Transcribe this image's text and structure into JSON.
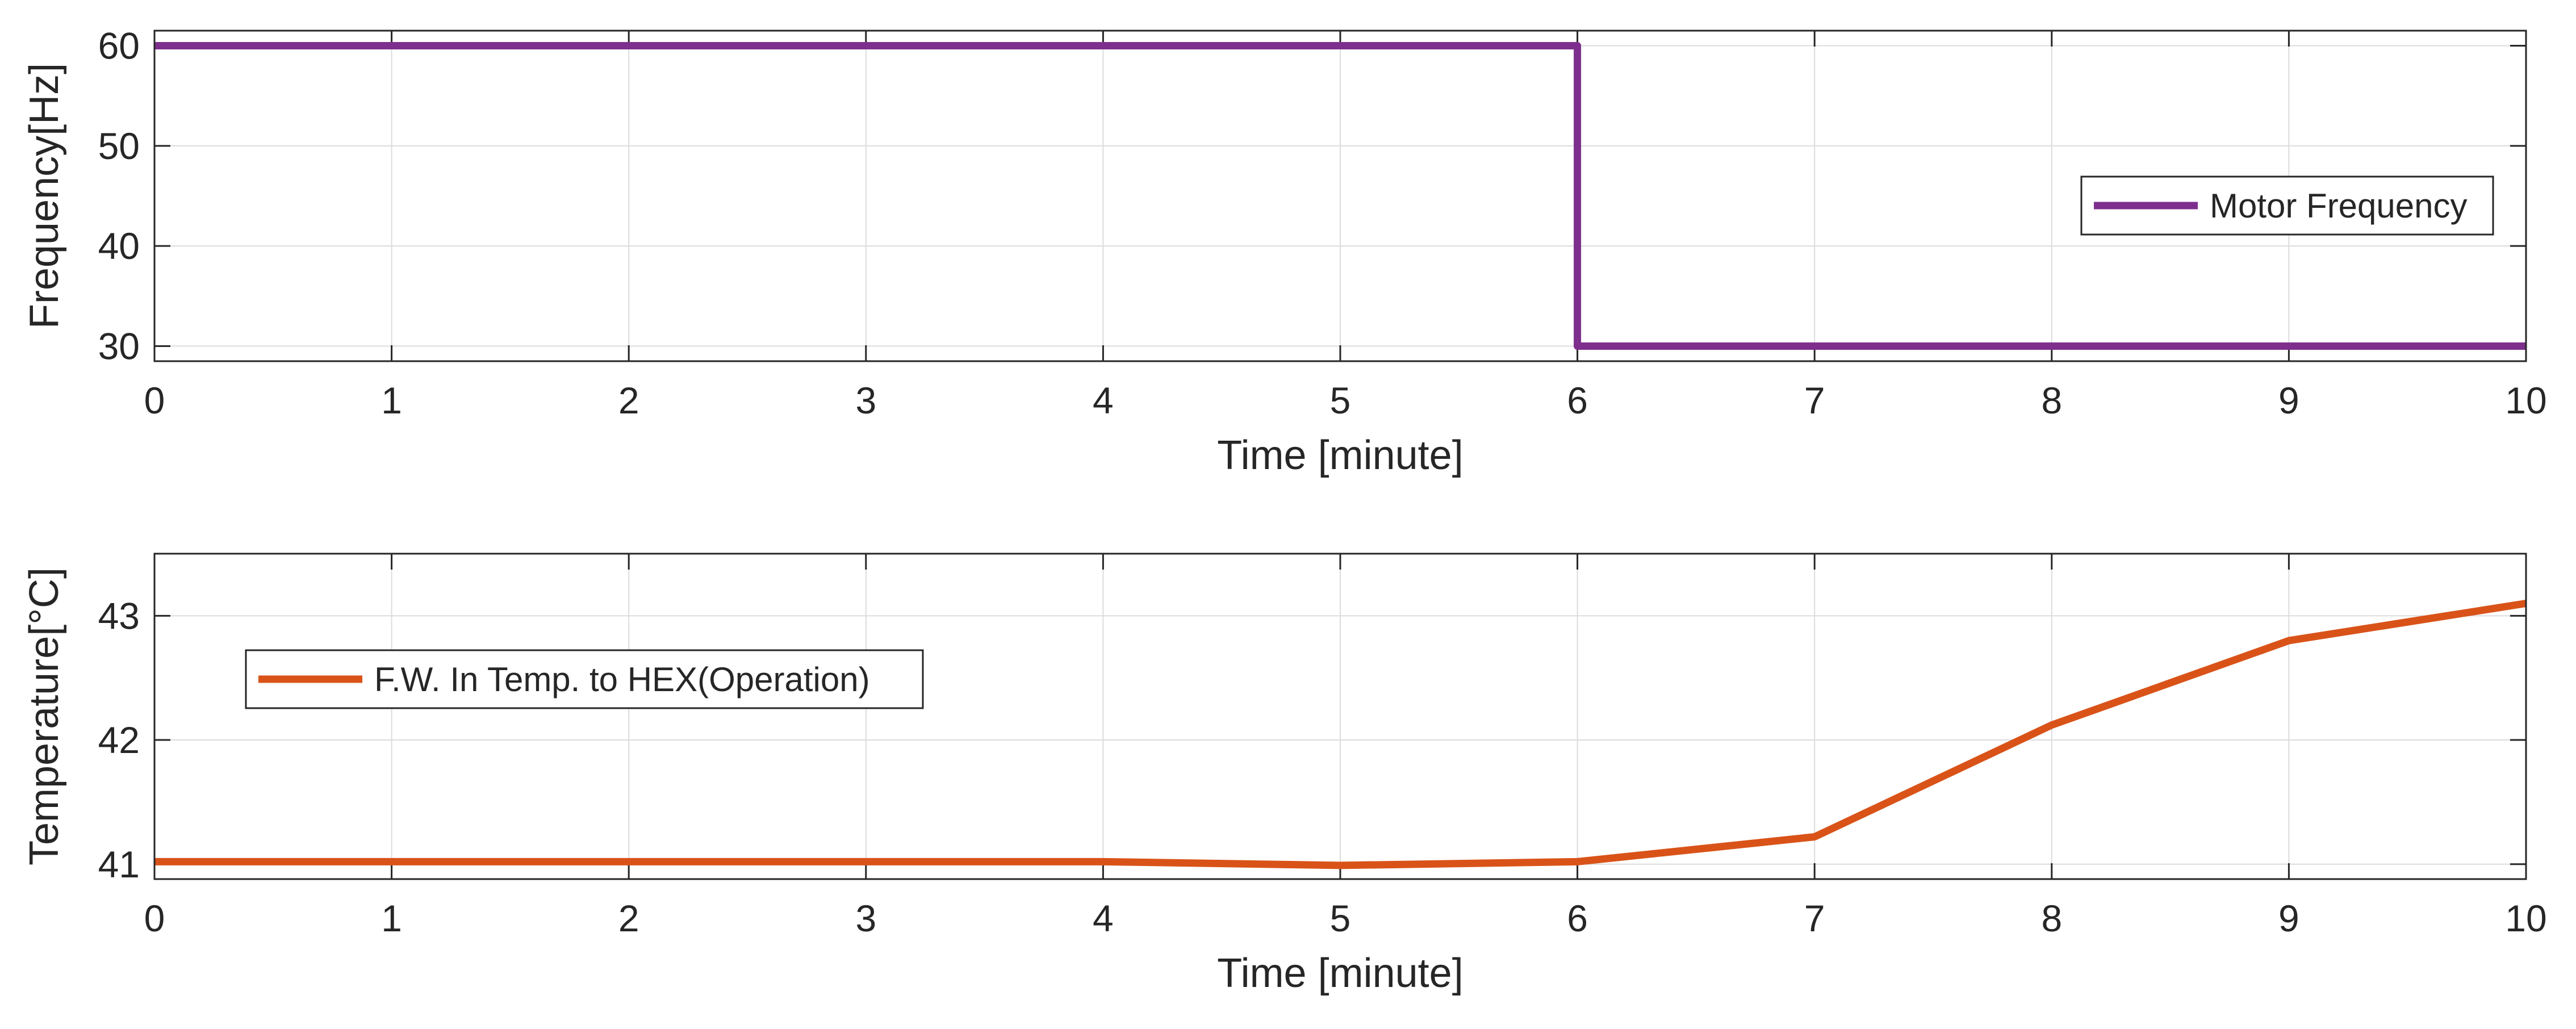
{
  "colors": {
    "frequency_line": "#7E2F8E",
    "temperature_line": "#D95319",
    "axis": "#262626",
    "grid": "#dcdcdc",
    "background": "#ffffff"
  },
  "chart_data": [
    {
      "type": "line",
      "title": "",
      "xlabel": "Time [minute]",
      "ylabel": "Frequency[Hz]",
      "xlim": [
        0,
        10
      ],
      "ylim": [
        28.5,
        61.5
      ],
      "xticks": [
        0,
        1,
        2,
        3,
        4,
        5,
        6,
        7,
        8,
        9,
        10
      ],
      "yticks": [
        30,
        40,
        50,
        60
      ],
      "grid": true,
      "legend_position": "right",
      "step": true,
      "series": [
        {
          "name": "Motor Frequency",
          "x": [
            0,
            6,
            6,
            10
          ],
          "y": [
            60,
            60,
            30,
            30
          ]
        }
      ]
    },
    {
      "type": "line",
      "title": "",
      "xlabel": "Time [minute]",
      "ylabel": "Temperature[°C]",
      "xlim": [
        0,
        10
      ],
      "ylim": [
        40.88,
        43.5
      ],
      "xticks": [
        0,
        1,
        2,
        3,
        4,
        5,
        6,
        7,
        8,
        9,
        10
      ],
      "yticks": [
        41,
        42,
        43
      ],
      "grid": true,
      "legend_position": "left",
      "step": false,
      "series": [
        {
          "name": "F.W. In Temp. to HEX(Operation)",
          "x": [
            0,
            1,
            2,
            3,
            4,
            5,
            6,
            7,
            8,
            9,
            10
          ],
          "y": [
            41.02,
            41.02,
            41.02,
            41.02,
            41.02,
            40.99,
            41.02,
            41.22,
            42.12,
            42.8,
            43.1
          ]
        }
      ]
    }
  ]
}
